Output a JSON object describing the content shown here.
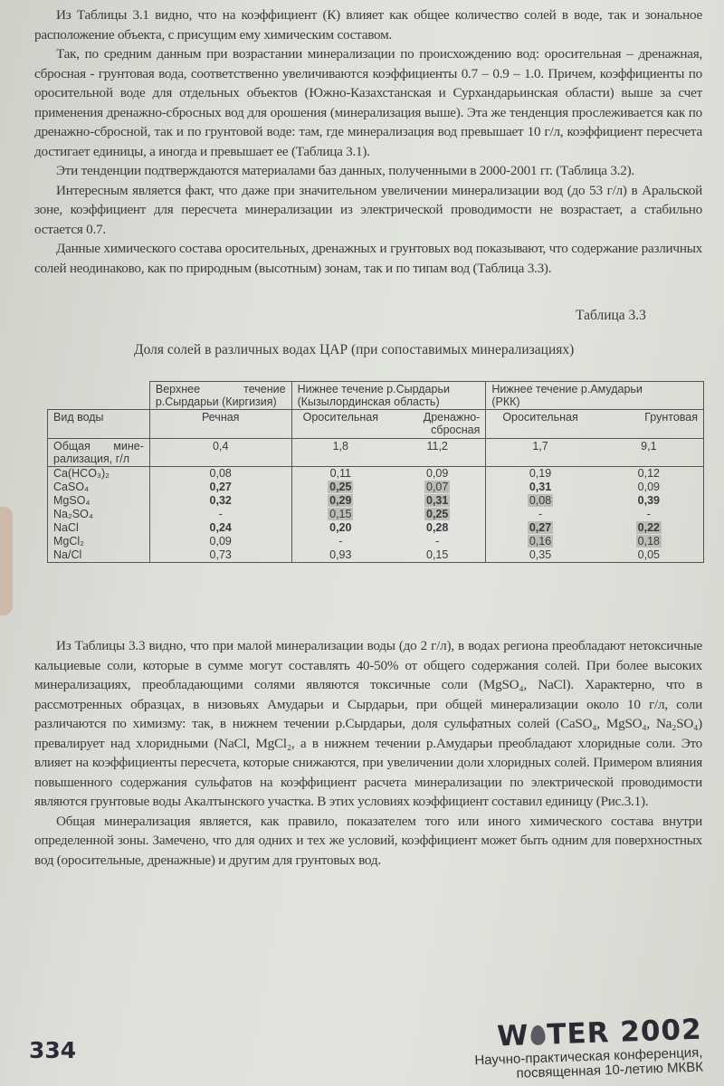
{
  "top_paragraphs": [
    "Из Таблицы 3.1 видно, что на коэффициент (К) влияет как общее количество солей в воде, так и зональное расположение объекта, с присущим ему химическим составом.",
    "Так, по средним данным при возрастании минерализации по происхождению вод: оросительная – дренажная, сбросная - грунтовая вода, соответственно увеличиваются коэффициенты 0.7 – 0.9 – 1.0. Причем, коэффициенты по оросительной воде для отдельных объектов (Южно-Казахстанская и Сурхандарьинская области) выше за счет применения дренажно-сбросных вод для орошения (минерализация выше). Эта же тенденция прослеживается как по дренажно-сбросной, так и по грунтовой воде: там, где минерализация вод превышает 10 г/л, коэффициент пересчета достигает единицы, а иногда и превышает ее (Таблица 3.1).",
    "Эти тенденции подтверждаются материалами баз данных, полученными в 2000-2001 гг. (Таблица 3.2).",
    "Интересным является факт, что даже при значительном увеличении минерализации вод (до 53 г/л) в Аральской зоне, коэффициент для пересчета минерализации из электрической проводимости не возрастает, а стабильно остается 0.7.",
    "Данные химического состава оросительных, дренажных и грунтовых вод показывают, что содержание различных солей неодинаково, как по природным (высотным) зонам, так и по типам вод (Таблица 3.3)."
  ],
  "table": {
    "number": "Таблица 3.3",
    "title": "Доля солей в различных водах ЦАР (при сопоставимых минерализациях)",
    "groups": [
      {
        "left": "Верхнее",
        "right": "течение",
        "line2": "р.Сырдарьи (Киргизия)"
      },
      {
        "left": "Нижнее течение р.Сырдарьи",
        "line2": "(Кызылординская область)"
      },
      {
        "left": "Нижнее течение р.Амударьи",
        "line2": "(РКК)"
      }
    ],
    "water_type_label": "Вид воды",
    "water_types": [
      "Речная",
      "Оросительная",
      "Дренажно-сбросная",
      "Оросительная",
      "Грунтовая"
    ],
    "mineralization_label_1": "Общая",
    "mineralization_label_2": "мине-",
    "mineralization_label_3": "рализация, г/л",
    "mineralization": [
      "0,4",
      "1,8",
      "11,2",
      "1,7",
      "9,1"
    ],
    "rows": [
      {
        "salt": "Ca(HCO₃)₂",
        "cells": [
          {
            "v": "0,08"
          },
          {
            "v": "0,11"
          },
          {
            "v": "0,09"
          },
          {
            "v": "0,19"
          },
          {
            "v": "0,12"
          }
        ]
      },
      {
        "salt": "CaSO₄",
        "cells": [
          {
            "v": "0,27",
            "bold": true
          },
          {
            "v": "0,25",
            "bold": true,
            "hl": true
          },
          {
            "v": "0,07",
            "hl": true
          },
          {
            "v": "0,31",
            "bold": true
          },
          {
            "v": "0,09"
          }
        ]
      },
      {
        "salt": "MgSO₄",
        "cells": [
          {
            "v": "0,32",
            "bold": true
          },
          {
            "v": "0,29",
            "bold": true,
            "hl": true
          },
          {
            "v": "0,31",
            "bold": true,
            "hl": true
          },
          {
            "v": "0,08",
            "hl": true
          },
          {
            "v": "0,39",
            "bold": true
          }
        ]
      },
      {
        "salt": "Na₂SO₄",
        "cells": [
          {
            "v": "-"
          },
          {
            "v": "0,15",
            "hl": true
          },
          {
            "v": "0,25",
            "bold": true,
            "hl": true
          },
          {
            "v": "-"
          },
          {
            "v": "-"
          }
        ]
      },
      {
        "salt": "NaCl",
        "cells": [
          {
            "v": "0,24",
            "bold": true
          },
          {
            "v": "0,20",
            "bold": true
          },
          {
            "v": "0,28",
            "bold": true
          },
          {
            "v": "0,27",
            "bold": true,
            "hl": true
          },
          {
            "v": "0,22",
            "bold": true,
            "hl": true
          }
        ]
      },
      {
        "salt": "MgCl₂",
        "cells": [
          {
            "v": "0,09"
          },
          {
            "v": "-"
          },
          {
            "v": "-"
          },
          {
            "v": "0,16",
            "hl": true
          },
          {
            "v": "0,18",
            "hl": true
          }
        ]
      },
      {
        "salt": "Na/Cl",
        "cells": [
          {
            "v": "0,73"
          },
          {
            "v": "0,93"
          },
          {
            "v": "0,15"
          },
          {
            "v": "0,35"
          },
          {
            "v": "0,05"
          }
        ]
      }
    ],
    "highlight_color": "#bcbcb8"
  },
  "bottom_paragraphs": [
    "Из Таблицы 3.3 видно, что при малой минерализации воды (до 2 г/л), в водах региона преобладают нетоксичные кальциевые соли, которые в сумме могут составлять 40-50% от общего содержания солей. При более высоких минерализациях, преобладающими солями являются токсичные соли (MgSO₄, NaCl). Характерно, что в рассмотренных образцах, в низовьях Амударьи и Сырдарьи, при общей минерализации около 10 г/л, соли различаются по химизму: так, в нижнем течении р.Сырдарьи, доля сульфатных солей (CaSO₄, MgSO₄, Na₂SO₄) превалирует над хлоридными (NaCl, MgCl₂, а в нижнем течении р.Амударьи преобладают хлоридные соли. Это влияет на коэффициенты пересчета, которые снижаются, при увеличении доли хлоридных солей. Примером влияния повышенного содержания сульфатов на коэффициент расчета минерализации по электрической проводимости являются грунтовые воды Акалтынского участка. В этих условиях коэффициент составил единицу (Рис.3.1).",
    "Общая минерализация является, как правило, показателем того или иного химического состава внутри определенной зоны. Замечено, что для одних и тех же условий, коэффициент может быть одним для поверхностных вод (оросительные, дренажные) и другим для грунтовых вод."
  ],
  "footer": {
    "page_number": "334",
    "logo_left": "W",
    "logo_right": "TER 2002",
    "logo_icon": "water-drop-icon",
    "conference_line1": "Научно-практическая конференция,",
    "conference_line2": "посвященная 10-летию МКВК"
  }
}
